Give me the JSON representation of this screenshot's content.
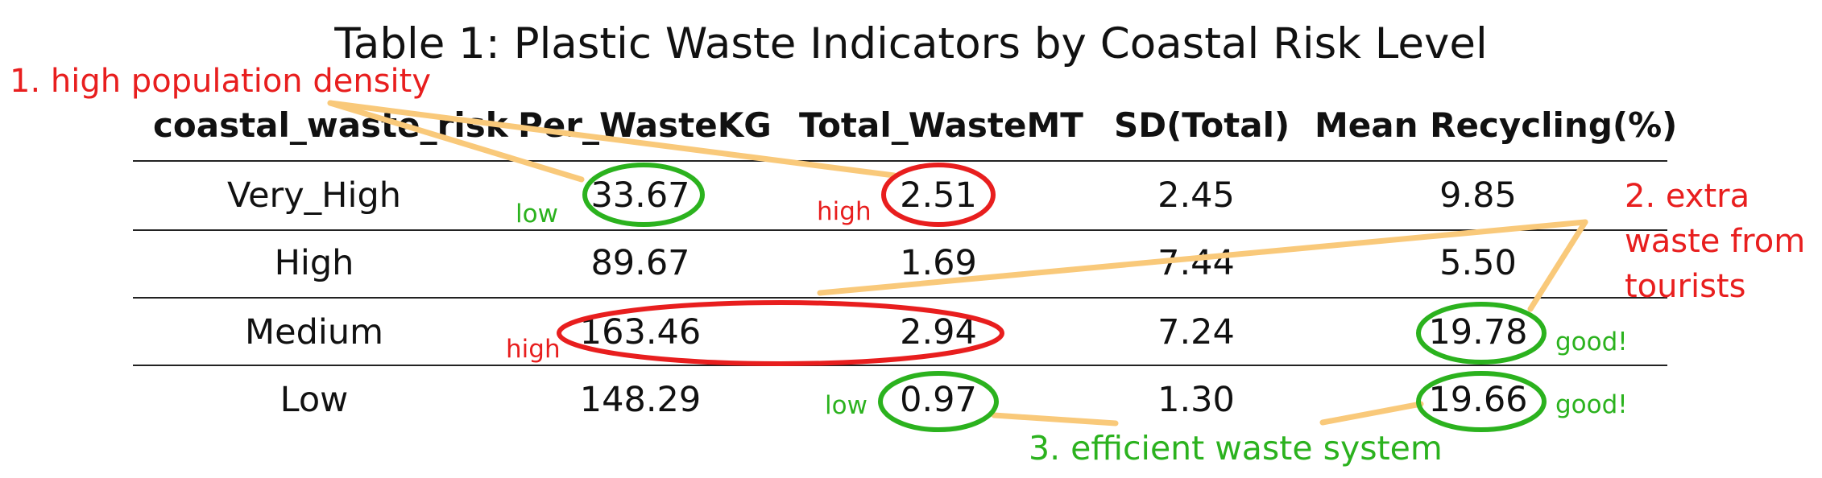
{
  "title": "Table 1: Plastic Waste Indicators by Coastal Risk Level",
  "columns": [
    "coastal_waste_risk",
    "Per_WasteKG",
    "Total_WasteMT",
    "SD(Total)",
    "Mean Recycling(%)"
  ],
  "rows": [
    {
      "coastal_waste_risk": "Very_High",
      "per_waste_kg": "33.67",
      "total_waste_mt": "2.51",
      "sd_total": "2.45",
      "mean_recycling": "9.85"
    },
    {
      "coastal_waste_risk": "High",
      "per_waste_kg": "89.67",
      "total_waste_mt": "1.69",
      "sd_total": "7.44",
      "mean_recycling": "5.50"
    },
    {
      "coastal_waste_risk": "Medium",
      "per_waste_kg": "163.46",
      "total_waste_mt": "2.94",
      "sd_total": "7.24",
      "mean_recycling": "19.78"
    },
    {
      "coastal_waste_risk": "Low",
      "per_waste_kg": "148.29",
      "total_waste_mt": "0.97",
      "sd_total": "1.30",
      "mean_recycling": "19.66"
    }
  ],
  "annotations": {
    "note_1": "1. high population density",
    "note_2_line1": "2. extra",
    "note_2_line2": "waste from",
    "note_2_line3": "tourists",
    "note_3": "3. efficient waste system",
    "tag_low_per_waste_very_high": "low",
    "tag_high_total_very_high": "high",
    "tag_high_medium_row": "high",
    "tag_low_total_low": "low",
    "tag_good_medium": "good!",
    "tag_good_low": "good!"
  },
  "colors": {
    "annotation_red": "#e81e1e",
    "annotation_green": "#2bb21e",
    "connector": "#f9c97a"
  }
}
